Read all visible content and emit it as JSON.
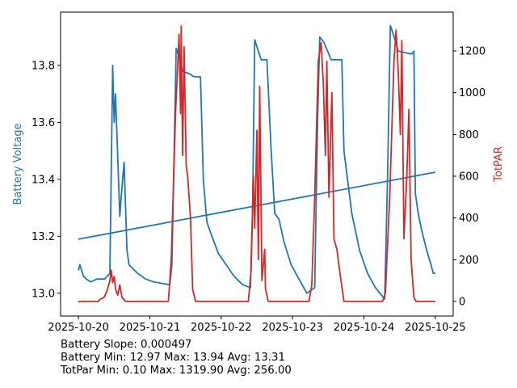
{
  "chart_data": {
    "type": "line",
    "x_unit": "days since 2025-10-20",
    "xlim": [
      -0.25,
      5.25
    ],
    "x_ticks": [
      0,
      1,
      2,
      3,
      4,
      5
    ],
    "x_tick_labels": [
      "2025-10-20",
      "2025-10-21",
      "2025-10-22",
      "2025-10-23",
      "2025-10-24",
      "2025-10-25"
    ],
    "left_axis": {
      "label": "Battery Voltage",
      "color": "#1f77b4",
      "ylim": [
        12.92,
        13.987
      ],
      "ticks": [
        13.0,
        13.2,
        13.4,
        13.6,
        13.8
      ],
      "tick_labels": [
        "13.0",
        "13.2",
        "13.4",
        "13.6",
        "13.8"
      ]
    },
    "right_axis": {
      "label": "TotPAR",
      "color": "#d62728",
      "ylim": [
        -70,
        1386
      ],
      "ticks": [
        0,
        200,
        400,
        600,
        800,
        1000,
        1200
      ],
      "tick_labels": [
        "0",
        "200",
        "400",
        "600",
        "800",
        "1000",
        "1200"
      ]
    },
    "series": [
      {
        "name": "Battery Voltage",
        "axis": "left",
        "color": "#1f77b4",
        "x": [
          0,
          0.02,
          0.07,
          0.11,
          0.17,
          0.26,
          0.37,
          0.44,
          0.48,
          0.5,
          0.52,
          0.58,
          0.6,
          0.64,
          0.68,
          0.71,
          0.83,
          0.94,
          1.05,
          1.28,
          1.31,
          1.37,
          1.41,
          1.46,
          1.56,
          1.62,
          1.71,
          1.75,
          1.8,
          1.87,
          1.96,
          2.07,
          2.18,
          2.3,
          2.41,
          2.44,
          2.47,
          2.52,
          2.56,
          2.64,
          2.7,
          2.75,
          2.81,
          2.88,
          2.98,
          3.09,
          3.2,
          3.31,
          3.35,
          3.38,
          3.44,
          3.54,
          3.69,
          3.72,
          3.77,
          3.83,
          3.94,
          4.05,
          4.16,
          4.29,
          4.33,
          4.37,
          4.41,
          4.48,
          4.67,
          4.7,
          4.72,
          4.76,
          4.81,
          4.88,
          4.94,
          4.97,
          5.0
        ],
        "y": [
          13.08,
          13.1,
          13.06,
          13.05,
          13.04,
          13.05,
          13.05,
          13.07,
          13.8,
          13.6,
          13.7,
          13.27,
          13.34,
          13.46,
          13.15,
          13.1,
          13.07,
          13.05,
          13.04,
          13.03,
          13.1,
          13.86,
          13.83,
          13.78,
          13.77,
          13.76,
          13.76,
          13.4,
          13.25,
          13.2,
          13.14,
          13.1,
          13.06,
          13.03,
          13.02,
          13.3,
          13.89,
          13.85,
          13.82,
          13.82,
          13.5,
          13.28,
          13.26,
          13.18,
          13.1,
          13.05,
          13.0,
          13.02,
          13.6,
          13.9,
          13.88,
          13.82,
          13.82,
          13.5,
          13.4,
          13.28,
          13.15,
          13.07,
          13.02,
          12.98,
          13.4,
          13.94,
          13.91,
          13.85,
          13.84,
          13.85,
          13.35,
          13.28,
          13.22,
          13.15,
          13.1,
          13.07,
          13.07
        ]
      },
      {
        "name": "Battery Trend",
        "axis": "left",
        "color": "#1f77b4",
        "x": [
          0,
          5
        ],
        "y": [
          13.19,
          13.425
        ]
      },
      {
        "name": "TotPAR",
        "axis": "right",
        "color": "#d62728",
        "x": [
          0,
          0.28,
          0.3,
          0.36,
          0.4,
          0.44,
          0.46,
          0.48,
          0.5,
          0.52,
          0.55,
          0.58,
          0.61,
          0.66,
          1.26,
          1.3,
          1.36,
          1.41,
          1.43,
          1.44,
          1.46,
          1.48,
          1.51,
          1.53,
          1.57,
          1.6,
          1.64,
          2.38,
          2.42,
          2.45,
          2.47,
          2.5,
          2.52,
          2.54,
          2.57,
          2.61,
          2.62,
          2.66,
          3.23,
          3.27,
          3.31,
          3.36,
          3.4,
          3.43,
          3.46,
          3.48,
          3.51,
          3.55,
          3.58,
          3.62,
          3.67,
          3.72,
          4.26,
          4.3,
          4.36,
          4.42,
          4.45,
          4.48,
          4.51,
          4.53,
          4.56,
          4.6,
          4.63,
          4.66,
          4.7,
          4.73,
          5.0
        ],
        "y": [
          0,
          0,
          10,
          20,
          50,
          100,
          150,
          90,
          120,
          60,
          30,
          80,
          20,
          0,
          0,
          200,
          900,
          1280,
          900,
          1320,
          700,
          1220,
          650,
          600,
          400,
          60,
          0,
          0,
          150,
          600,
          350,
          820,
          200,
          1030,
          100,
          250,
          60,
          0,
          0,
          80,
          500,
          1150,
          1240,
          1050,
          700,
          1150,
          500,
          1000,
          300,
          250,
          120,
          0,
          0,
          40,
          500,
          1150,
          1300,
          1100,
          800,
          1250,
          300,
          600,
          920,
          200,
          20,
          0,
          0
        ]
      }
    ],
    "annotations": [
      "Battery Slope: 0.000497",
      "Battery Min: 12.97 Max: 13.94 Avg: 13.31",
      "TotPar Min: 0.10 Max: 1319.90 Avg: 256.00"
    ]
  }
}
